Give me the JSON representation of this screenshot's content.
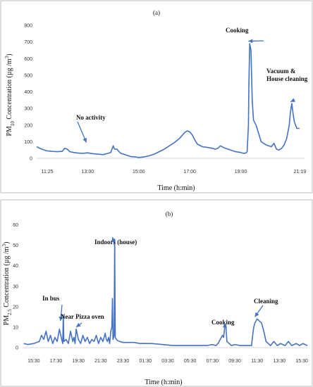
{
  "chart_data": [
    {
      "type": "line",
      "title": "(a)",
      "ylabel_text": "Concentration (µg/m³)",
      "ylabel_parts": {
        "pre": "PM",
        "sub": "10",
        "mid": " Concentration (µg /m",
        "sup": "3",
        "post": ")"
      },
      "xlabel": "Time (h:min)",
      "x_range_hours": [
        11.0,
        21.5
      ],
      "ylim": [
        0,
        800
      ],
      "yticks": [
        0,
        100,
        200,
        300,
        400,
        500,
        600,
        700,
        800
      ],
      "xticks": [
        {
          "label": "11:25",
          "h": 11.4167
        },
        {
          "label": "13:00",
          "h": 13.0
        },
        {
          "label": "15:00",
          "h": 15.0
        },
        {
          "label": "17:00",
          "h": 17.0
        },
        {
          "label": "19:00",
          "h": 19.0
        },
        {
          "label": "21:19",
          "h": 21.3167
        }
      ],
      "series": [
        {
          "x": [
            11.0,
            11.2,
            11.4,
            11.6,
            11.8,
            12.0,
            12.1,
            12.2,
            12.3,
            12.45,
            12.6,
            12.8,
            13.0,
            13.2,
            13.4,
            13.6,
            13.8,
            13.9,
            14.0,
            14.05,
            14.15,
            14.2,
            14.3,
            14.5,
            14.7,
            14.9,
            15.0,
            15.2,
            15.4,
            15.6,
            15.8,
            16.0,
            16.2,
            16.4,
            16.6,
            16.8,
            16.9,
            17.0,
            17.1,
            17.2,
            17.3,
            17.5,
            17.7,
            17.9,
            18.0,
            18.1,
            18.2,
            18.4,
            18.6,
            18.8,
            19.0,
            19.1,
            19.2,
            19.25,
            19.3,
            19.32,
            19.35,
            19.4,
            19.45,
            19.5,
            19.6,
            19.7,
            19.8,
            20.0,
            20.2,
            20.3,
            20.4,
            20.5,
            20.6,
            20.7,
            20.8,
            20.9,
            20.95,
            21.0,
            21.05,
            21.1,
            21.15,
            21.2,
            21.3
          ],
          "y": [
            70,
            55,
            45,
            42,
            40,
            42,
            60,
            55,
            40,
            35,
            32,
            30,
            33,
            28,
            25,
            22,
            30,
            35,
            75,
            55,
            55,
            45,
            30,
            20,
            10,
            8,
            5,
            8,
            15,
            25,
            40,
            55,
            75,
            95,
            120,
            155,
            165,
            160,
            140,
            110,
            85,
            70,
            65,
            60,
            55,
            60,
            75,
            60,
            50,
            40,
            35,
            30,
            32,
            40,
            200,
            450,
            690,
            650,
            350,
            230,
            200,
            150,
            100,
            80,
            70,
            90,
            55,
            50,
            60,
            80,
            120,
            200,
            280,
            330,
            270,
            220,
            200,
            180,
            180
          ]
        }
      ],
      "annotations": [
        {
          "text": "No activity",
          "target_h": 12.95,
          "target_y": 95
        },
        {
          "text": "Cooking",
          "target_h": 19.3,
          "target_y": 705
        },
        {
          "text": "Vacuum &",
          "text2": "House cleaning",
          "target_h": 20.95,
          "target_y": 340
        }
      ]
    },
    {
      "type": "line",
      "title": "(b)",
      "ylabel_text": "Concentration (µg/m³)",
      "ylabel_parts": {
        "pre": "PM",
        "sub": "2.5",
        "mid": " Concentration (µg /m",
        "sup": "3",
        "post": ")"
      },
      "xlabel": "Time (h:min)",
      "x_range_hours": [
        14.5,
        40.0
      ],
      "ylim": [
        0,
        65
      ],
      "yticks": [
        0,
        10,
        20,
        30,
        40,
        50,
        60
      ],
      "xticks": [
        {
          "label": "15:30",
          "h": 15.5
        },
        {
          "label": "17:30",
          "h": 17.5
        },
        {
          "label": "19:30",
          "h": 19.5
        },
        {
          "label": "21:30",
          "h": 21.5
        },
        {
          "label": "23:30",
          "h": 23.5
        },
        {
          "label": "01:30",
          "h": 25.5
        },
        {
          "label": "03:30",
          "h": 27.5
        },
        {
          "label": "05:30",
          "h": 29.5
        },
        {
          "label": "07:30",
          "h": 31.5
        },
        {
          "label": "09:30",
          "h": 33.5
        },
        {
          "label": "11:30",
          "h": 35.5
        },
        {
          "label": "13:30",
          "h": 37.5
        },
        {
          "label": "15:30",
          "h": 39.5
        }
      ],
      "series": [
        {
          "x": [
            14.6,
            15.0,
            15.5,
            16.0,
            16.2,
            16.4,
            16.6,
            16.8,
            17.0,
            17.2,
            17.4,
            17.6,
            17.8,
            18.0,
            18.1,
            18.15,
            18.2,
            18.4,
            18.6,
            18.8,
            19.0,
            19.1,
            19.2,
            19.3,
            19.5,
            19.7,
            19.9,
            20.1,
            20.3,
            20.5,
            20.7,
            20.9,
            21.1,
            21.3,
            21.5,
            21.7,
            21.9,
            22.0,
            22.1,
            22.2,
            22.3,
            22.4,
            22.5,
            22.55,
            22.6,
            22.7,
            22.75,
            22.8,
            22.9,
            23.0,
            23.2,
            23.5,
            24.0,
            24.5,
            25.0,
            25.5,
            26.0,
            27.0,
            28.0,
            29.0,
            30.0,
            31.0,
            31.5,
            31.8,
            32.0,
            32.2,
            32.4,
            32.5,
            32.6,
            32.7,
            32.8,
            33.0,
            33.2,
            33.5,
            34.0,
            34.5,
            34.8,
            35.0,
            35.1,
            35.2,
            35.3,
            35.5,
            35.7,
            35.9,
            36.1,
            36.3,
            36.5,
            36.7,
            37.0,
            37.3,
            37.6,
            38.0,
            38.3,
            38.6,
            39.0,
            39.3,
            39.6,
            40.0
          ],
          "y": [
            2,
            1.5,
            2,
            3,
            6,
            4,
            8,
            3,
            6,
            2,
            5,
            3,
            9,
            4,
            2,
            16,
            3,
            4,
            2,
            8,
            3,
            5,
            2,
            9,
            4,
            2,
            6,
            3,
            5,
            2,
            4,
            3,
            6,
            2,
            5,
            3,
            7,
            4,
            3,
            5,
            2,
            8,
            10,
            24,
            4,
            6,
            53,
            5,
            4,
            3.5,
            3,
            2.5,
            2.5,
            2.5,
            2,
            2,
            2,
            1.5,
            1,
            1,
            1,
            1,
            1.5,
            1,
            2,
            4,
            6,
            5,
            10,
            11,
            3,
            2,
            1,
            1.5,
            1,
            1,
            1,
            1,
            6,
            10,
            12,
            14,
            13,
            12,
            8,
            3,
            2,
            1,
            3,
            1,
            2,
            1,
            3,
            1,
            2,
            1,
            2,
            1
          ]
        }
      ],
      "annotations": [
        {
          "text": "In bus",
          "target_h": 17.9,
          "target_y": 13
        },
        {
          "text": "Near Pizza oven",
          "target_h": 19.3,
          "target_y": 10
        },
        {
          "text": "Indoors (house)",
          "target_h": 22.55,
          "target_y": 54
        },
        {
          "text": "Cooking",
          "target_h": 32.6,
          "target_y": 12
        },
        {
          "text": "Cleaning",
          "target_h": 35.3,
          "target_y": 15
        }
      ]
    }
  ]
}
